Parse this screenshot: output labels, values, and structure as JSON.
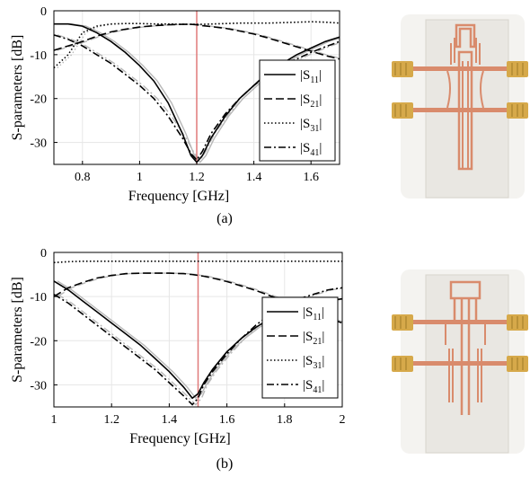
{
  "colors": {
    "marker": "#e07a7a",
    "reference_trace": "#b8b8b8",
    "measured_trace": "#000000",
    "substrate": "#ecebe6",
    "copper": "#d98b6c",
    "connector_gold": "#d6a94a"
  },
  "chart_data": [
    {
      "type": "line",
      "panel_label": "(a)",
      "xlabel": "Frequency [GHz]",
      "ylabel": "S-parameters [dB]",
      "xlim": [
        0.7,
        1.7
      ],
      "ylim": [
        -35,
        0
      ],
      "xticks": [
        0.8,
        1,
        1.2,
        1.4,
        1.6
      ],
      "xtick_labels": [
        "0.8",
        "1",
        "1.2",
        "1.4",
        "1.6"
      ],
      "yticks": [
        0,
        -10,
        -20,
        -30
      ],
      "ytick_labels": [
        "0",
        "-10",
        "-20",
        "-30"
      ],
      "grid": true,
      "legend_position": "right",
      "marker_frequency": 1.2,
      "x": [
        0.7,
        0.75,
        0.8,
        0.85,
        0.9,
        0.95,
        1.0,
        1.05,
        1.1,
        1.15,
        1.18,
        1.2,
        1.22,
        1.25,
        1.3,
        1.35,
        1.4,
        1.45,
        1.5,
        1.55,
        1.6,
        1.65,
        1.7
      ],
      "series": [
        {
          "name": "|S11|",
          "legend_main": "|S",
          "legend_sub": "11",
          "dash": "solid",
          "values": [
            -3,
            -3,
            -3.5,
            -5,
            -7,
            -9.5,
            -12.5,
            -16,
            -21,
            -28,
            -33,
            -34.5,
            -33,
            -29,
            -24,
            -20,
            -17,
            -14,
            -12,
            -10,
            -8.5,
            -7,
            -6
          ]
        },
        {
          "name": "|S21|",
          "legend_main": "|S",
          "legend_sub": "21",
          "dash": "dashed",
          "values": [
            -9,
            -8,
            -7,
            -5.8,
            -4.8,
            -4.2,
            -3.7,
            -3.4,
            -3.2,
            -3.1,
            -3.1,
            -3.2,
            -3.4,
            -3.6,
            -4.0,
            -4.6,
            -5.3,
            -6.2,
            -7.2,
            -8.2,
            -9.2,
            -10.2,
            -11
          ]
        },
        {
          "name": "|S31|",
          "legend_main": "|S",
          "legend_sub": "31",
          "dash": "dotted",
          "values": [
            -13,
            -10,
            -5,
            -3.5,
            -3,
            -2.9,
            -2.9,
            -3,
            -3,
            -3.1,
            -3.1,
            -3.1,
            -3.1,
            -3,
            -2.9,
            -2.8,
            -2.8,
            -2.8,
            -2.7,
            -2.6,
            -2.5,
            -2.6,
            -2.8
          ]
        },
        {
          "name": "|S41|",
          "legend_main": "|S",
          "legend_sub": "41",
          "dash": "dashdot",
          "values": [
            -5.5,
            -6.5,
            -8,
            -10,
            -12,
            -14.5,
            -17,
            -20,
            -24,
            -29,
            -32.5,
            -34,
            -32,
            -28,
            -23.5,
            -20,
            -17,
            -14.5,
            -12.5,
            -11,
            -9.5,
            -8.2,
            -7
          ]
        }
      ]
    },
    {
      "type": "line",
      "panel_label": "(b)",
      "xlabel": "Frequency [GHz]",
      "ylabel": "S-parameters [dB]",
      "xlim": [
        1,
        2
      ],
      "ylim": [
        -35,
        0
      ],
      "xticks": [
        1,
        1.2,
        1.4,
        1.6,
        1.8,
        2
      ],
      "xtick_labels": [
        "1",
        "1.2",
        "1.4",
        "1.6",
        "1.8",
        "2"
      ],
      "yticks": [
        0,
        -10,
        -20,
        -30
      ],
      "ytick_labels": [
        "0",
        "-10",
        "-20",
        "-30"
      ],
      "grid": true,
      "legend_position": "right",
      "marker_frequency": 1.5,
      "x": [
        1.0,
        1.05,
        1.1,
        1.15,
        1.2,
        1.25,
        1.3,
        1.35,
        1.4,
        1.45,
        1.48,
        1.5,
        1.52,
        1.55,
        1.6,
        1.65,
        1.7,
        1.75,
        1.8,
        1.85,
        1.9,
        1.95,
        2.0
      ],
      "series": [
        {
          "name": "|S11|",
          "legend_main": "|S",
          "legend_sub": "11",
          "dash": "solid",
          "values": [
            -6.5,
            -8.5,
            -11,
            -13.5,
            -16,
            -18.5,
            -21,
            -24,
            -27,
            -30.5,
            -33,
            -32,
            -29.5,
            -26.5,
            -22.5,
            -19.5,
            -17,
            -15,
            -13.5,
            -12.5,
            -11.5,
            -11,
            -10.5
          ]
        },
        {
          "name": "|S21|",
          "legend_main": "|S",
          "legend_sub": "21",
          "dash": "dashed",
          "values": [
            -10,
            -8,
            -6.8,
            -5.8,
            -5.2,
            -4.8,
            -4.7,
            -4.7,
            -4.7,
            -4.8,
            -5.0,
            -5.2,
            -5.4,
            -5.8,
            -6.6,
            -7.6,
            -8.6,
            -9.8,
            -11,
            -12.3,
            -13.5,
            -14.8,
            -16
          ]
        },
        {
          "name": "|S31|",
          "legend_main": "|S",
          "legend_sub": "31",
          "dash": "dotted",
          "values": [
            -2.3,
            -2.1,
            -2,
            -2,
            -2,
            -2,
            -2,
            -2,
            -2,
            -2,
            -2,
            -2,
            -2,
            -2,
            -2,
            -2,
            -2,
            -2,
            -2,
            -2,
            -2,
            -2,
            -2
          ]
        },
        {
          "name": "|S41|",
          "legend_main": "|S",
          "legend_sub": "41",
          "dash": "dashdot",
          "values": [
            -9.5,
            -11.5,
            -14,
            -16.5,
            -19,
            -21.5,
            -24,
            -26.5,
            -29.5,
            -32.5,
            -34.5,
            -33,
            -30,
            -27,
            -23,
            -19.5,
            -16.5,
            -14,
            -12,
            -10.5,
            -9.5,
            -8.5,
            -8
          ]
        }
      ]
    }
  ]
}
